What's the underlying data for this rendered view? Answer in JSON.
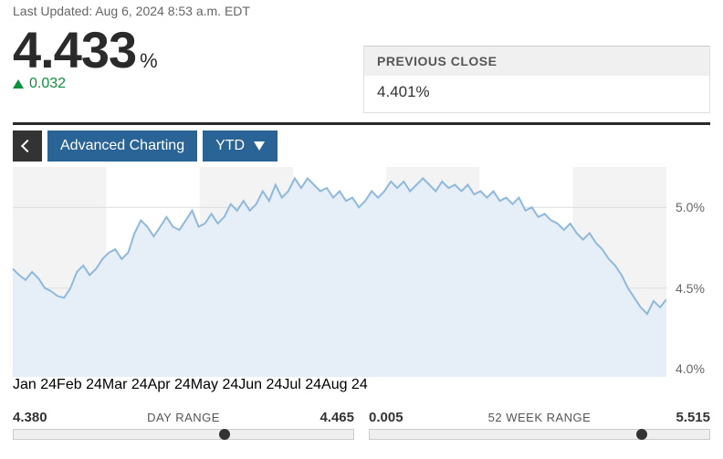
{
  "updated": "Last Updated: Aug 6, 2024 8:53 a.m. EDT",
  "price": "4.433",
  "price_suffix": "%",
  "change": "0.032",
  "change_color": "#0a8f3c",
  "prev_close": {
    "label": "PREVIOUS CLOSE",
    "value": "4.401%"
  },
  "toolbar": {
    "advanced": "Advanced Charting",
    "range": "YTD"
  },
  "chart": {
    "type": "area",
    "line_color": "#8fb9dc",
    "fill_color": "#e6eff7",
    "band_color": "#f3f3f3",
    "grid_color": "#dddddd",
    "ylim": [
      3.95,
      5.25
    ],
    "yticks": [
      4.0,
      4.5,
      5.0
    ],
    "ytick_labels": [
      "4.0%",
      "4.5%",
      "5.0%"
    ],
    "xticks": [
      "Jan 24",
      "Feb 24",
      "Mar 24",
      "Apr 24",
      "May 24",
      "Jun 24",
      "Jul 24",
      "Aug 24"
    ],
    "xtick_pos": [
      0,
      0.143,
      0.286,
      0.429,
      0.571,
      0.714,
      0.857,
      1.0
    ],
    "series": [
      4.62,
      4.58,
      4.55,
      4.6,
      4.56,
      4.5,
      4.48,
      4.45,
      4.44,
      4.5,
      4.6,
      4.64,
      4.58,
      4.62,
      4.68,
      4.72,
      4.74,
      4.68,
      4.72,
      4.84,
      4.92,
      4.88,
      4.82,
      4.88,
      4.94,
      4.88,
      4.86,
      4.92,
      4.98,
      4.88,
      4.9,
      4.96,
      4.9,
      4.94,
      5.02,
      4.98,
      5.04,
      4.98,
      5.02,
      5.1,
      5.04,
      5.14,
      5.06,
      5.1,
      5.18,
      5.12,
      5.18,
      5.14,
      5.1,
      5.12,
      5.06,
      5.1,
      5.04,
      5.06,
      5.0,
      5.04,
      5.1,
      5.06,
      5.1,
      5.16,
      5.12,
      5.16,
      5.1,
      5.14,
      5.18,
      5.14,
      5.1,
      5.16,
      5.12,
      5.14,
      5.1,
      5.14,
      5.08,
      5.1,
      5.06,
      5.1,
      5.04,
      5.06,
      5.02,
      5.06,
      4.98,
      5.0,
      4.94,
      4.96,
      4.92,
      4.9,
      4.86,
      4.9,
      4.84,
      4.8,
      4.84,
      4.78,
      4.74,
      4.68,
      4.64,
      4.58,
      4.5,
      4.44,
      4.38,
      4.34,
      4.42,
      4.38,
      4.43
    ]
  },
  "ranges": {
    "day": {
      "label": "DAY RANGE",
      "low": "4.380",
      "high": "4.465",
      "pos": 0.62
    },
    "week": {
      "label": "52 WEEK RANGE",
      "low": "0.005",
      "high": "5.515",
      "pos": 0.8
    }
  }
}
